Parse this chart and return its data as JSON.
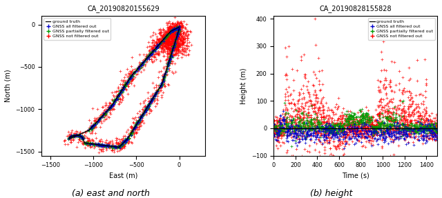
{
  "title_left": "CA_20190820155629",
  "title_right": "CA_20190828155828",
  "xlabel_left": "East (m)",
  "ylabel_left": "North (m)",
  "xlabel_right": "Time (s)",
  "ylabel_right": "Height (m)",
  "caption_left": "(a) east and north",
  "caption_right": "(b) height",
  "legend_entries": [
    "ground truth",
    "GNSS all filtered out",
    "GNSS partially filtered out",
    "GNSS not filtered out"
  ],
  "gt_color": "#000000",
  "blue_color": "#0000cc",
  "green_color": "#009900",
  "red_color": "#ff0000",
  "left_xlim": [
    -1600,
    300
  ],
  "left_ylim": [
    -1550,
    100
  ],
  "left_xticks": [
    -1500,
    -1000,
    -500,
    0
  ],
  "left_yticks": [
    -1500,
    -1000,
    -500,
    0
  ],
  "right_xlim": [
    0,
    1500
  ],
  "right_ylim": [
    -100,
    410
  ],
  "right_xticks": [
    0,
    200,
    400,
    600,
    800,
    1000,
    1200,
    1400
  ],
  "right_yticks": [
    -100,
    0,
    100,
    200,
    300,
    400
  ],
  "seed": 42
}
